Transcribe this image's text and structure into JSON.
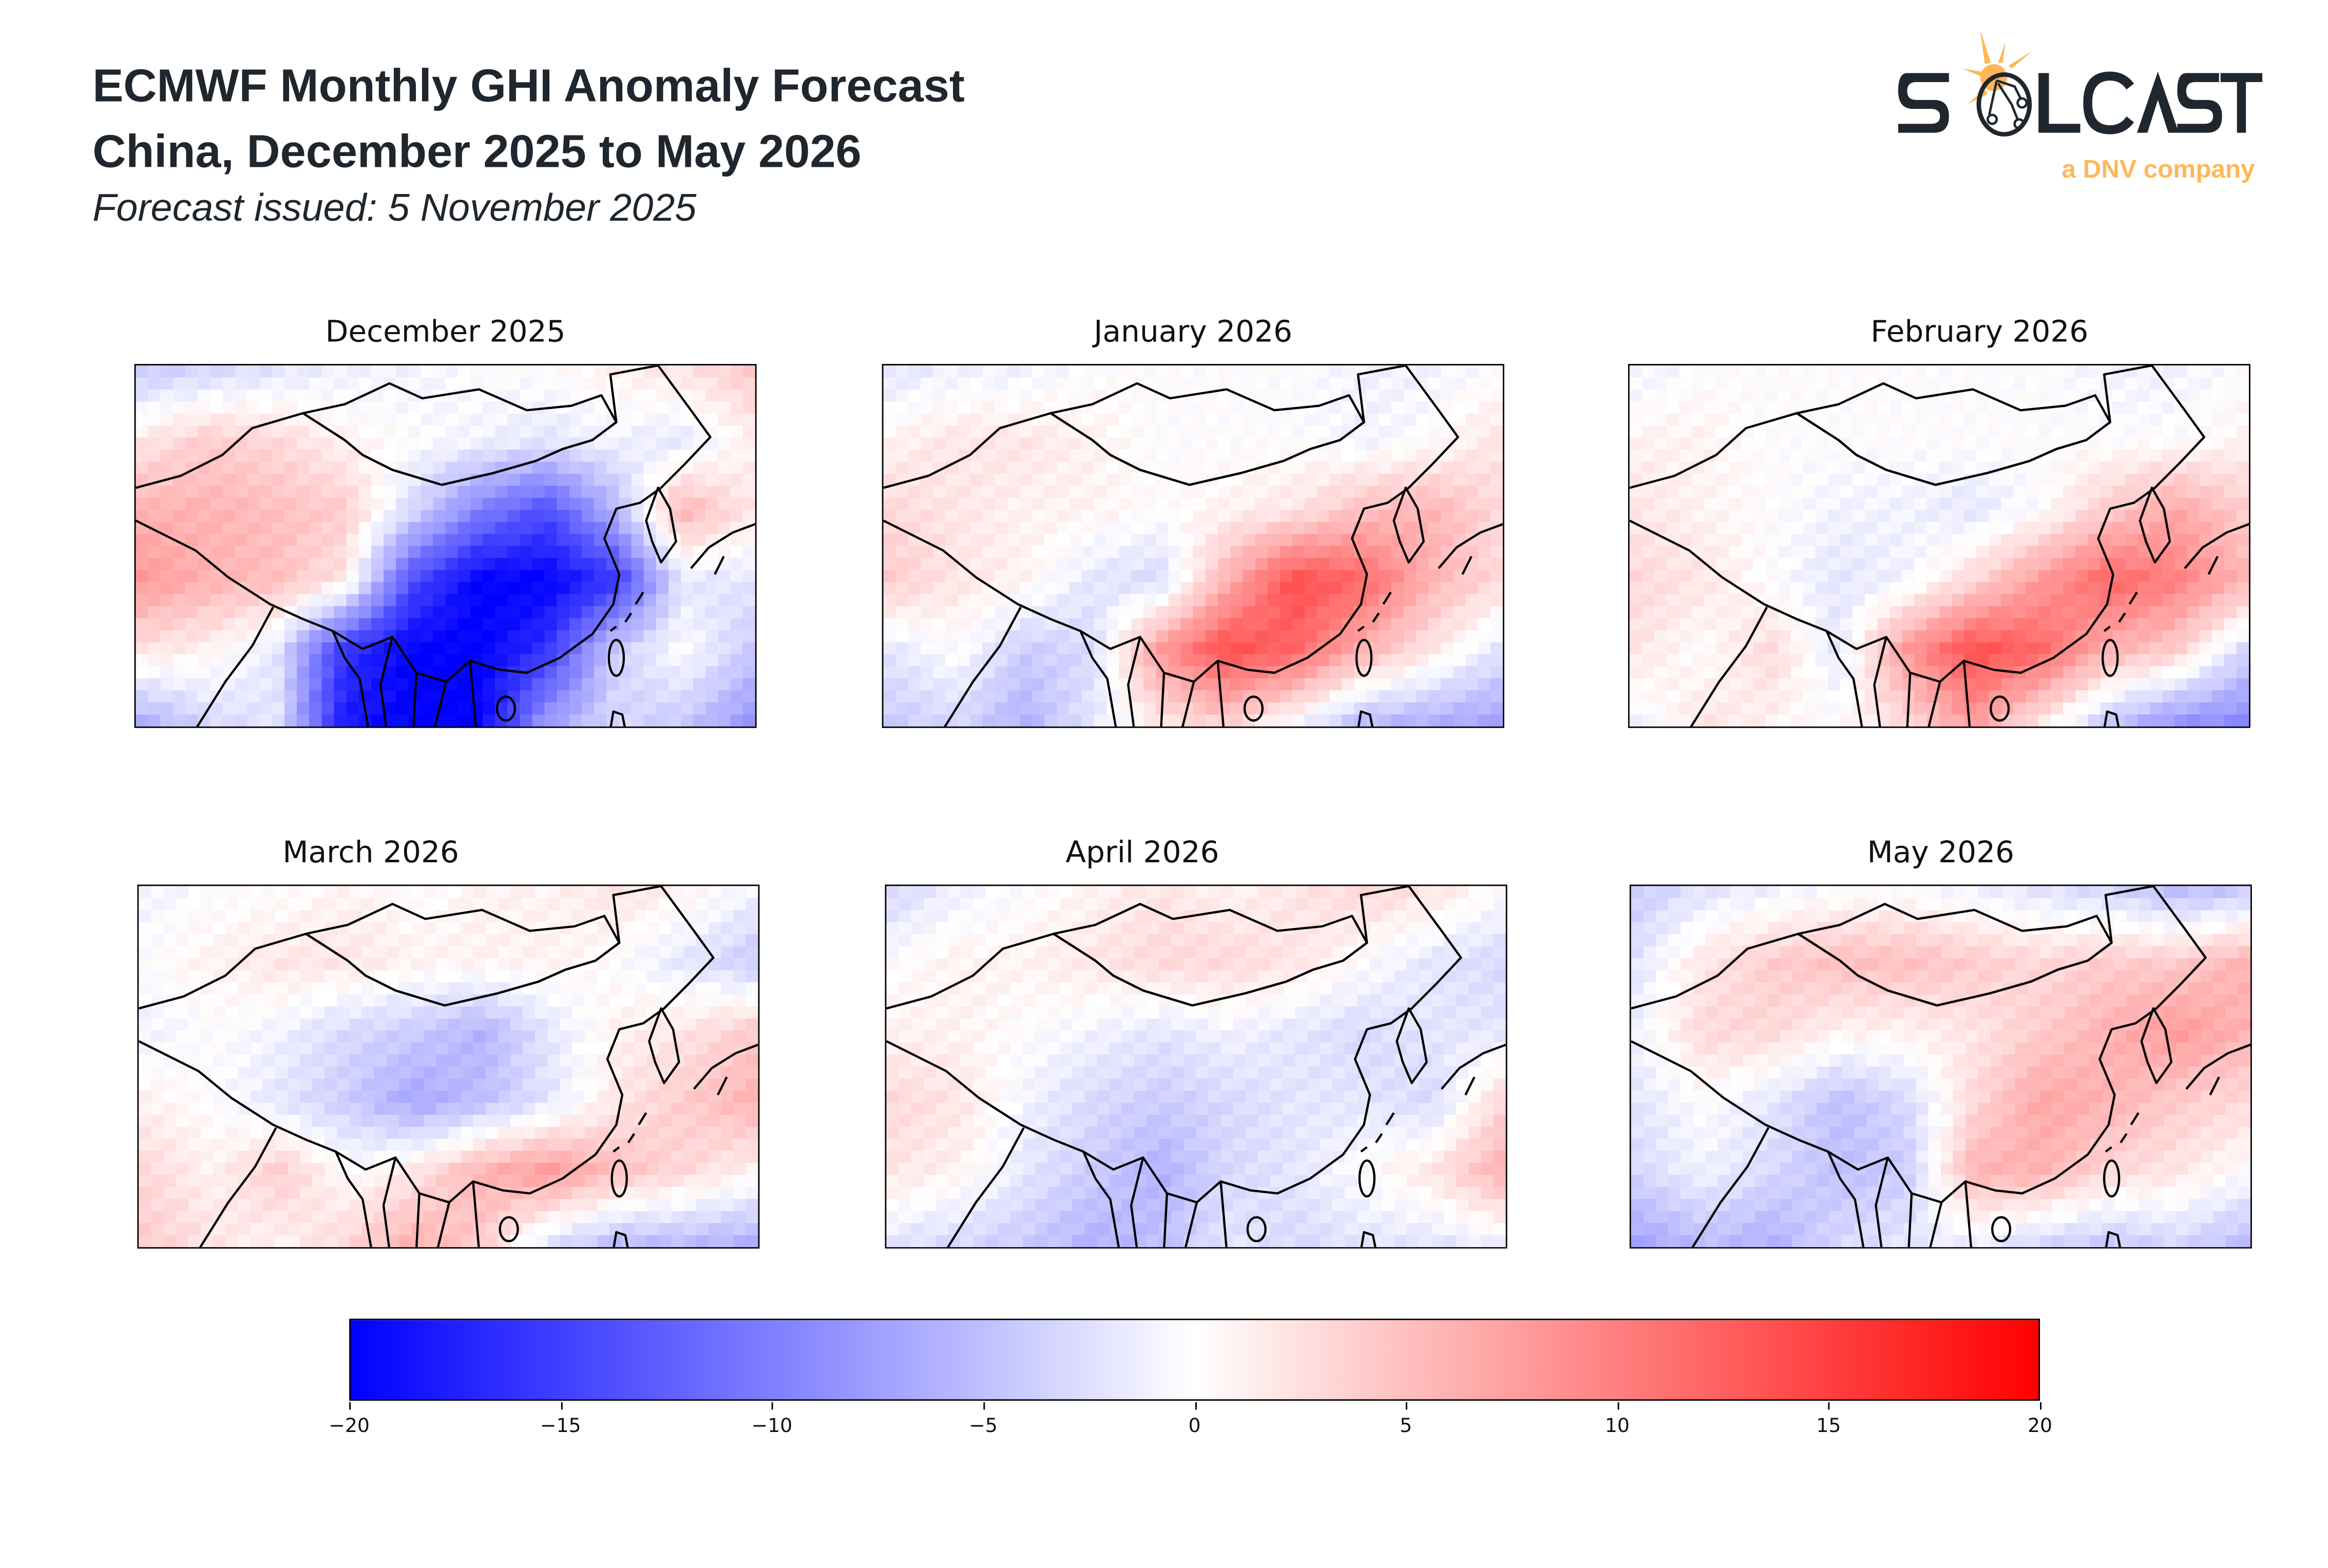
{
  "header": {
    "title_line1": "ECMWF Monthly GHI Anomaly Forecast",
    "title_line2": "China, December 2025 to May 2026",
    "issued": "Forecast issued: 5 November 2025"
  },
  "logo": {
    "wordmark": "SOLCAST",
    "tagline": "a DNV company",
    "dark_color": "#1f262d",
    "accent_color": "#ffb75a"
  },
  "chart_data": {
    "type": "heatmap",
    "colormap": "bwr",
    "colors": {
      "min": "#0000ff",
      "mid": "#ffffff",
      "max": "#ff0000"
    },
    "colorbar": {
      "range": [
        -20,
        20
      ],
      "ticks": [
        "−20",
        "−15",
        "−10",
        "−5",
        "0",
        "5",
        "10",
        "15",
        "20"
      ],
      "placement": "bottom"
    },
    "grid_note_rows": "north to south",
    "panels": [
      {
        "title": "December 2025",
        "grid": [
          [
            -4,
            -3,
            -2,
            -1,
            -1,
            0,
            0,
            1,
            2,
            4
          ],
          [
            2,
            4,
            3,
            1,
            0,
            -1,
            -2,
            -1,
            -2,
            1
          ],
          [
            6,
            6,
            5,
            4,
            -3,
            -10,
            -14,
            -6,
            6,
            2
          ],
          [
            8,
            6,
            5,
            2,
            -14,
            -20,
            -20,
            -16,
            -2,
            -2
          ],
          [
            2,
            1,
            -2,
            -16,
            -20,
            -20,
            -16,
            -4,
            0,
            -4
          ],
          [
            -6,
            -3,
            -2,
            -18,
            -20,
            -20,
            -8,
            -3,
            -4,
            -8
          ]
        ]
      },
      {
        "title": "January 2026",
        "grid": [
          [
            -2,
            -1,
            -1,
            0,
            0,
            0,
            0,
            -1,
            -1,
            0
          ],
          [
            1,
            2,
            2,
            1,
            0,
            0,
            0,
            -1,
            0,
            2
          ],
          [
            3,
            2,
            1,
            1,
            0,
            1,
            2,
            5,
            6,
            3
          ],
          [
            4,
            2,
            1,
            -2,
            -3,
            6,
            14,
            12,
            6,
            3
          ],
          [
            -2,
            0,
            -4,
            -3,
            8,
            14,
            12,
            6,
            2,
            -2
          ],
          [
            -4,
            -3,
            -6,
            -2,
            2,
            4,
            0,
            -5,
            -6,
            -7
          ]
        ]
      },
      {
        "title": "February 2026",
        "grid": [
          [
            -1,
            0,
            0,
            0,
            0,
            0,
            0,
            -1,
            -1,
            0
          ],
          [
            1,
            1,
            0,
            0,
            0,
            0,
            0,
            0,
            0,
            1
          ],
          [
            2,
            1,
            0,
            -1,
            -1,
            -2,
            0,
            4,
            7,
            4
          ],
          [
            3,
            2,
            0,
            -2,
            -1,
            3,
            8,
            12,
            10,
            6
          ],
          [
            2,
            0,
            3,
            -2,
            8,
            14,
            12,
            6,
            4,
            -3
          ],
          [
            -1,
            2,
            1,
            0,
            3,
            8,
            2,
            -4,
            -8,
            -9
          ]
        ]
      },
      {
        "title": "March 2026",
        "grid": [
          [
            -1,
            0,
            0,
            1,
            0,
            1,
            1,
            2,
            1,
            -1
          ],
          [
            0,
            1,
            2,
            2,
            1,
            1,
            1,
            0,
            -2,
            -4
          ],
          [
            -1,
            0,
            -1,
            -3,
            -4,
            -6,
            -2,
            1,
            2,
            4
          ],
          [
            1,
            0,
            -2,
            -4,
            -7,
            -5,
            -2,
            2,
            4,
            6
          ],
          [
            3,
            1,
            4,
            0,
            2,
            6,
            8,
            5,
            3,
            1
          ],
          [
            4,
            2,
            1,
            3,
            6,
            4,
            -2,
            -5,
            -5,
            -6
          ]
        ]
      },
      {
        "title": "April 2026",
        "grid": [
          [
            -3,
            -1,
            0,
            1,
            2,
            1,
            2,
            3,
            2,
            0
          ],
          [
            0,
            1,
            1,
            2,
            3,
            3,
            2,
            0,
            -2,
            -3
          ],
          [
            1,
            1,
            0,
            -1,
            -2,
            -1,
            -2,
            -3,
            -2,
            -2
          ],
          [
            3,
            2,
            -1,
            -3,
            -4,
            -3,
            -2,
            -2,
            -3,
            3
          ],
          [
            2,
            1,
            -2,
            -4,
            -6,
            -3,
            -2,
            0,
            2,
            6
          ],
          [
            -2,
            -3,
            -4,
            -6,
            -5,
            -2,
            -3,
            -2,
            -2,
            -1
          ]
        ]
      },
      {
        "title": "May 2026",
        "grid": [
          [
            -4,
            -2,
            -1,
            0,
            0,
            -1,
            -2,
            -3,
            -5,
            -4
          ],
          [
            -2,
            2,
            4,
            5,
            5,
            4,
            3,
            4,
            4,
            6
          ],
          [
            -1,
            3,
            3,
            1,
            1,
            2,
            4,
            6,
            8,
            6
          ],
          [
            -2,
            0,
            -2,
            -5,
            -3,
            3,
            7,
            6,
            4,
            3
          ],
          [
            -3,
            -1,
            -3,
            -5,
            -4,
            6,
            6,
            3,
            2,
            0
          ],
          [
            -7,
            -5,
            -6,
            -3,
            -2,
            -1,
            -3,
            -4,
            -3,
            -5
          ]
        ]
      }
    ]
  }
}
